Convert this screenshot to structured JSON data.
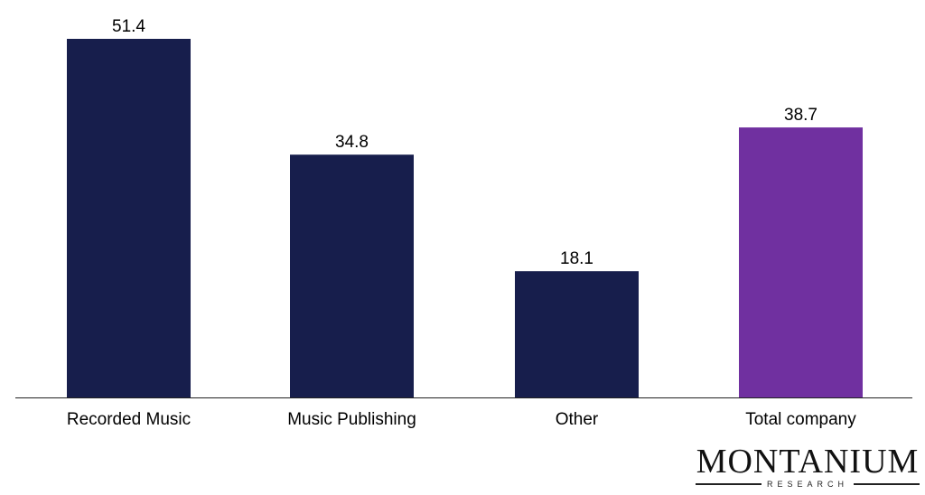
{
  "chart_data": {
    "type": "bar",
    "categories": [
      "Recorded Music",
      "Music Publishing",
      "Other",
      "Total company"
    ],
    "values": [
      51.4,
      34.8,
      18.1,
      38.7
    ],
    "data_labels": [
      "51.4",
      "34.8",
      "18.1",
      "38.7"
    ],
    "colors": [
      "#171e4c",
      "#171e4c",
      "#171e4c",
      "#7030a0"
    ],
    "title": "",
    "xlabel": "",
    "ylabel": "",
    "ylim": [
      0,
      51.4
    ],
    "grid": false,
    "legend": "none"
  },
  "logo": {
    "name": "Montanium",
    "sub": "Research"
  }
}
